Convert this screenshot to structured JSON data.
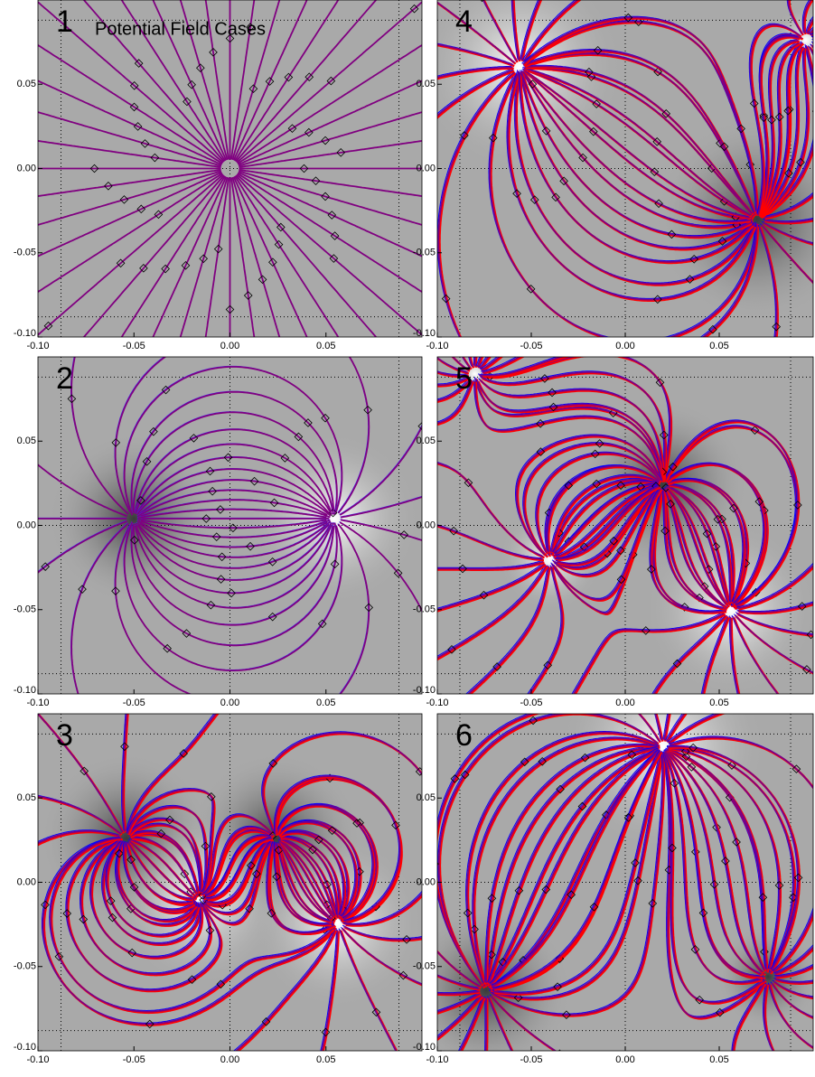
{
  "chart_data": [
    {
      "type": "streamline",
      "panel_label": "1",
      "title": "Potential Field Cases",
      "xlim": [
        -0.1,
        0.1
      ],
      "ylim": [
        -0.1,
        0.1
      ],
      "xticks": [
        {
          "value": -0.1,
          "label": "-0.10"
        },
        {
          "value": -0.05,
          "label": "-0.05"
        },
        {
          "value": 0,
          "label": "0.00"
        },
        {
          "value": 0.05,
          "label": "0.05"
        }
      ],
      "yticks": [
        {
          "value": -0.1,
          "label": "-0.10"
        },
        {
          "value": -0.05,
          "label": "-0.05"
        },
        {
          "value": 0,
          "label": "0.00"
        },
        {
          "value": 0.05,
          "label": "0.05"
        }
      ]
    },
    {
      "type": "streamline",
      "panel_label": "2",
      "xlim": [
        -0.1,
        0.1
      ],
      "ylim": [
        -0.1,
        0.1
      ],
      "xticks": [
        {
          "value": -0.1,
          "label": "-0.10"
        },
        {
          "value": -0.05,
          "label": "-0.05"
        },
        {
          "value": 0,
          "label": "0.00"
        },
        {
          "value": 0.05,
          "label": "0.05"
        }
      ],
      "yticks": [
        {
          "value": -0.1,
          "label": "-0.10"
        },
        {
          "value": -0.05,
          "label": "-0.05"
        },
        {
          "value": 0,
          "label": "0.00"
        },
        {
          "value": 0.05,
          "label": "0.05"
        }
      ]
    },
    {
      "type": "streamline",
      "panel_label": "3",
      "xlim": [
        -0.1,
        0.1
      ],
      "ylim": [
        -0.1,
        0.1
      ],
      "xticks": [
        {
          "value": -0.1,
          "label": "-0.10"
        },
        {
          "value": -0.05,
          "label": "-0.05"
        },
        {
          "value": 0,
          "label": "0.00"
        },
        {
          "value": 0.05,
          "label": "0.05"
        }
      ],
      "yticks": [
        {
          "value": -0.1,
          "label": "-0.10"
        },
        {
          "value": -0.05,
          "label": "-0.05"
        },
        {
          "value": 0,
          "label": "0.00"
        },
        {
          "value": 0.05,
          "label": "0.05"
        }
      ]
    },
    {
      "type": "streamline",
      "panel_label": "4",
      "xlim": [
        -0.1,
        0.1
      ],
      "ylim": [
        -0.1,
        0.1
      ],
      "xticks": [
        {
          "value": -0.1,
          "label": "-0.10"
        },
        {
          "value": -0.05,
          "label": "-0.05"
        },
        {
          "value": 0,
          "label": "0.00"
        },
        {
          "value": 0.05,
          "label": "0.05"
        }
      ],
      "yticks": [
        {
          "value": -0.1,
          "label": "-0.10"
        },
        {
          "value": -0.05,
          "label": "-0.05"
        },
        {
          "value": 0,
          "label": "0.00"
        },
        {
          "value": 0.05,
          "label": "0.05"
        }
      ]
    },
    {
      "type": "streamline",
      "panel_label": "5",
      "xlim": [
        -0.1,
        0.1
      ],
      "ylim": [
        -0.1,
        0.1
      ],
      "xticks": [
        {
          "value": -0.1,
          "label": "-0.10"
        },
        {
          "value": -0.05,
          "label": "-0.05"
        },
        {
          "value": 0,
          "label": "0.00"
        },
        {
          "value": 0.05,
          "label": "0.05"
        }
      ],
      "yticks": [
        {
          "value": -0.1,
          "label": "-0.10"
        },
        {
          "value": -0.05,
          "label": "-0.05"
        },
        {
          "value": 0,
          "label": "0.00"
        },
        {
          "value": 0.05,
          "label": "0.05"
        }
      ]
    },
    {
      "type": "streamline",
      "panel_label": "6",
      "xlim": [
        -0.1,
        0.1
      ],
      "ylim": [
        -0.1,
        0.1
      ],
      "xticks": [
        {
          "value": -0.1,
          "label": "-0.10"
        },
        {
          "value": -0.05,
          "label": "-0.05"
        },
        {
          "value": 0,
          "label": "0.00"
        },
        {
          "value": 0.05,
          "label": "0.05"
        }
      ],
      "yticks": [
        {
          "value": -0.1,
          "label": "-0.10"
        },
        {
          "value": -0.05,
          "label": "-0.05"
        },
        {
          "value": 0,
          "label": "0.00"
        },
        {
          "value": 0.05,
          "label": "0.05"
        }
      ]
    }
  ]
}
